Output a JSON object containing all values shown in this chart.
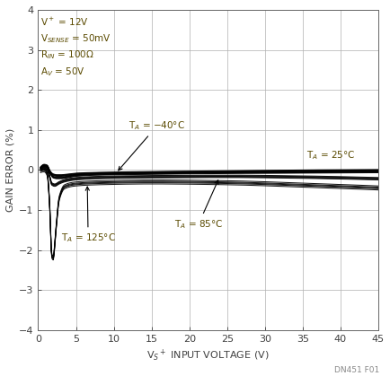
{
  "xlabel": "V$_S$$^+$ INPUT VOLTAGE (V)",
  "ylabel": "GAIN ERROR (%)",
  "xlim": [
    0,
    45
  ],
  "ylim": [
    -4,
    4
  ],
  "xticks": [
    0,
    5,
    10,
    15,
    20,
    25,
    30,
    35,
    40,
    45
  ],
  "yticks": [
    -4,
    -3,
    -2,
    -1,
    0,
    1,
    2,
    3,
    4
  ],
  "annotation_box": "V$^+$ = 12V\nV$_{SENSE}$ = 50mV\nR$_{IN}$ = 100Ω\nA$_V$ = 50V",
  "label_25": "T$_A$ = 25°C",
  "label_n40": "T$_A$ = −40°C",
  "label_85": "T$_A$ = 85°C",
  "label_125": "T$_A$ = 125°C",
  "watermark": "DN451 F01",
  "bg_color": "#ffffff",
  "line_color": "#000000",
  "grid_color": "#b0b0b0",
  "text_color": "#404040",
  "annot_color": "#5a4a00"
}
